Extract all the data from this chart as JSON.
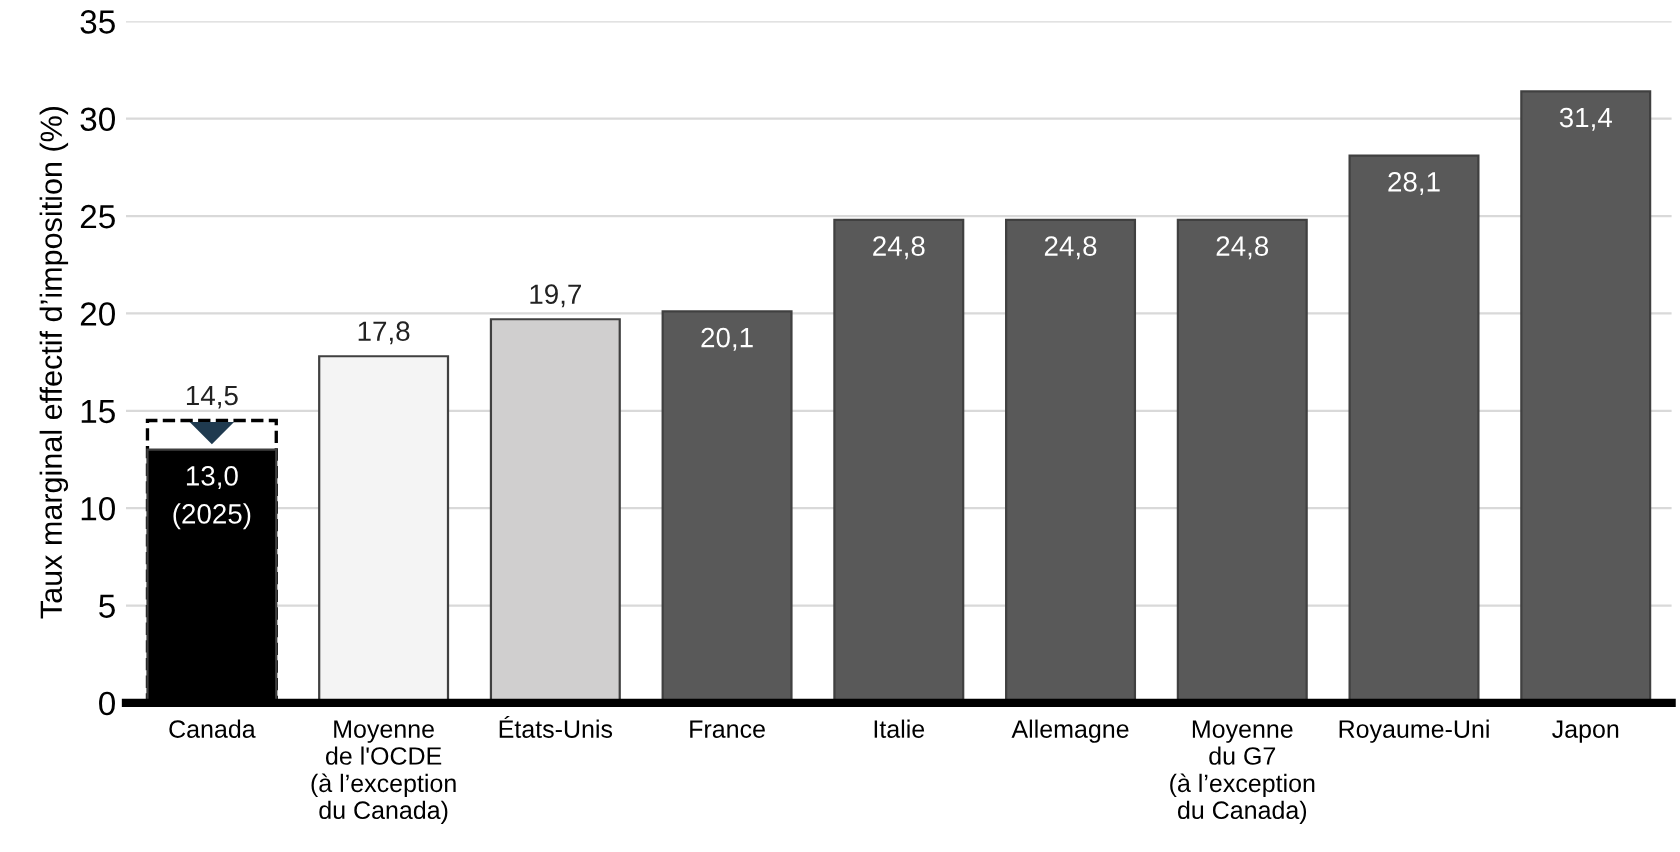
{
  "chart_data": {
    "type": "bar",
    "ylabel": "Taux marginal effectif d’imposition (%)",
    "categories": [
      "Canada",
      "Moyenne\nde l'OCDE\n(à l’exception\ndu Canada)",
      "États-Unis",
      "France",
      "Italie",
      "Allemagne",
      "Moyenne\ndu G7\n(à l’exception\ndu Canada)",
      "Royaume-Uni",
      "Japon"
    ],
    "series": [
      {
        "values": [
          14.5,
          null,
          null,
          null,
          null,
          null,
          null,
          null,
          null
        ],
        "color": "#ffffff",
        "line_style": "dashed",
        "value_labels": [
          "14,5",
          null,
          null,
          null,
          null,
          null,
          null,
          null,
          null
        ]
      },
      {
        "values": [
          13.0,
          17.8,
          19.7,
          20.1,
          24.8,
          24.8,
          24.8,
          28.1,
          31.4
        ],
        "colors": [
          "#000000",
          "#f4f4f4",
          "#d0cfcf",
          "#595959",
          "#595959",
          "#595959",
          "#595959",
          "#595959",
          "#595959"
        ],
        "line_style": "solid",
        "value_labels": [
          "13,0\n(2025)",
          "17,8",
          "19,7",
          "20,1",
          "24,8",
          "24,8",
          "24,8",
          "28,1",
          "31,4"
        ]
      }
    ],
    "ylim": [
      0,
      35
    ],
    "yticks": [
      0,
      5,
      10,
      15,
      20,
      25,
      30,
      35
    ],
    "grid": "y",
    "legend": false
  }
}
